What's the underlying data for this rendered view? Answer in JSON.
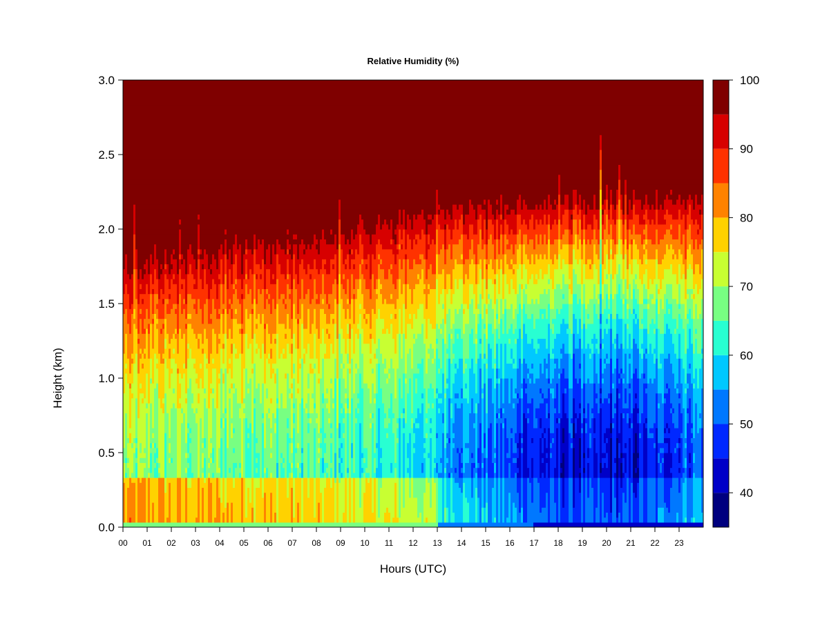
{
  "chart_data": {
    "type": "heatmap",
    "title": "Relative Humidity (%)",
    "xlabel": "Hours (UTC)",
    "ylabel": "Height (km)",
    "xlim": [
      0,
      24
    ],
    "ylim": [
      0,
      3
    ],
    "x_tick_labels": [
      "00",
      "01",
      "02",
      "03",
      "04",
      "05",
      "06",
      "07",
      "08",
      "09",
      "10",
      "11",
      "12",
      "13",
      "14",
      "15",
      "16",
      "17",
      "18",
      "19",
      "20",
      "21",
      "22",
      "23"
    ],
    "y_tick_labels": [
      "0.0",
      "0.5",
      "1.0",
      "1.5",
      "2.0",
      "2.5",
      "3.0"
    ],
    "y_tick_values": [
      0,
      0.5,
      1.0,
      1.5,
      2.0,
      2.5,
      3.0
    ],
    "colorbar": {
      "levels": [
        35,
        40,
        45,
        50,
        55,
        60,
        65,
        70,
        75,
        80,
        85,
        90,
        95,
        100
      ],
      "tick_values": [
        40,
        50,
        60,
        70,
        80,
        90,
        100
      ],
      "tick_labels": [
        "40",
        "50",
        "60",
        "70",
        "80",
        "90",
        "100"
      ],
      "colors": [
        "#00007F",
        "#0000C8",
        "#0028FF",
        "#0078FF",
        "#00C8FF",
        "#28FFD2",
        "#78FF82",
        "#C8FF32",
        "#FFD200",
        "#FF8200",
        "#FF3200",
        "#D70000",
        "#7F0000"
      ]
    },
    "field_description": {
      "top_saturated_layer_base_km": [
        [
          0,
          1.85
        ],
        [
          6,
          1.95
        ],
        [
          12,
          2.15
        ],
        [
          15,
          2.2
        ],
        [
          19,
          2.25
        ],
        [
          24,
          2.25
        ]
      ],
      "min_humidity_pct": [
        [
          0,
          68
        ],
        [
          6,
          66
        ],
        [
          12,
          60
        ],
        [
          15,
          50
        ],
        [
          18,
          43
        ],
        [
          21,
          42
        ],
        [
          24,
          52
        ]
      ]
    }
  }
}
